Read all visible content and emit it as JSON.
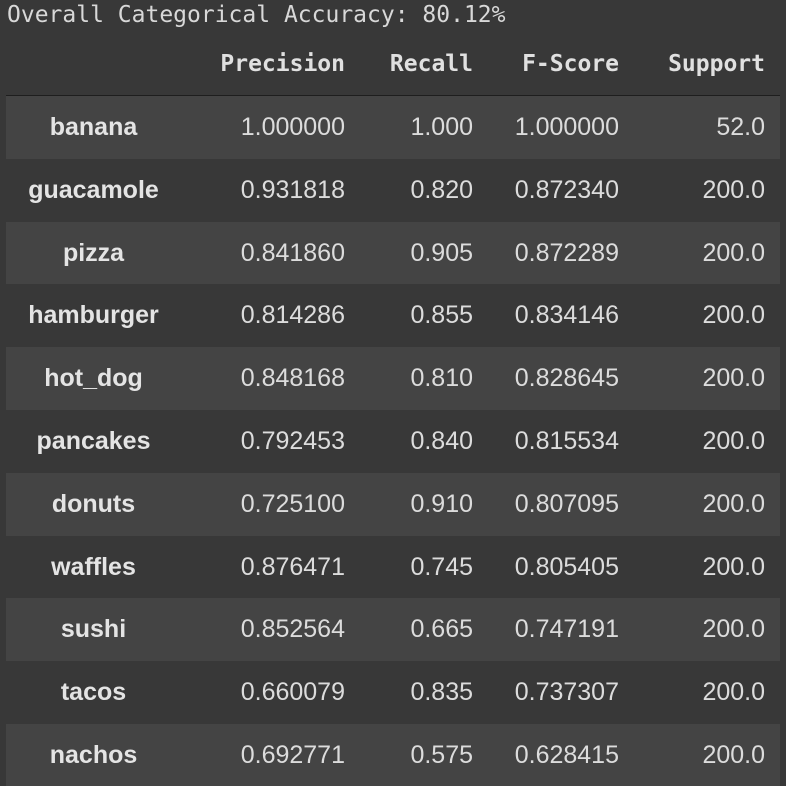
{
  "accuracy_text": "Overall Categorical Accuracy: 80.12%",
  "columns": {
    "precision": "Precision",
    "recall": "Recall",
    "fscore": "F-Score",
    "support": "Support"
  },
  "rows": [
    {
      "label": "banana",
      "precision": "1.000000",
      "recall": "1.000",
      "fscore": "1.000000",
      "support": "52.0"
    },
    {
      "label": "guacamole",
      "precision": "0.931818",
      "recall": "0.820",
      "fscore": "0.872340",
      "support": "200.0"
    },
    {
      "label": "pizza",
      "precision": "0.841860",
      "recall": "0.905",
      "fscore": "0.872289",
      "support": "200.0"
    },
    {
      "label": "hamburger",
      "precision": "0.814286",
      "recall": "0.855",
      "fscore": "0.834146",
      "support": "200.0"
    },
    {
      "label": "hot_dog",
      "precision": "0.848168",
      "recall": "0.810",
      "fscore": "0.828645",
      "support": "200.0"
    },
    {
      "label": "pancakes",
      "precision": "0.792453",
      "recall": "0.840",
      "fscore": "0.815534",
      "support": "200.0"
    },
    {
      "label": "donuts",
      "precision": "0.725100",
      "recall": "0.910",
      "fscore": "0.807095",
      "support": "200.0"
    },
    {
      "label": "waffles",
      "precision": "0.876471",
      "recall": "0.745",
      "fscore": "0.805405",
      "support": "200.0"
    },
    {
      "label": "sushi",
      "precision": "0.852564",
      "recall": "0.665",
      "fscore": "0.747191",
      "support": "200.0"
    },
    {
      "label": "tacos",
      "precision": "0.660079",
      "recall": "0.835",
      "fscore": "0.737307",
      "support": "200.0"
    },
    {
      "label": "nachos",
      "precision": "0.692771",
      "recall": "0.575",
      "fscore": "0.628415",
      "support": "200.0"
    }
  ],
  "colors": {
    "background": "#383838",
    "row_stripe": "#444444",
    "text": "#dcdcdc"
  }
}
